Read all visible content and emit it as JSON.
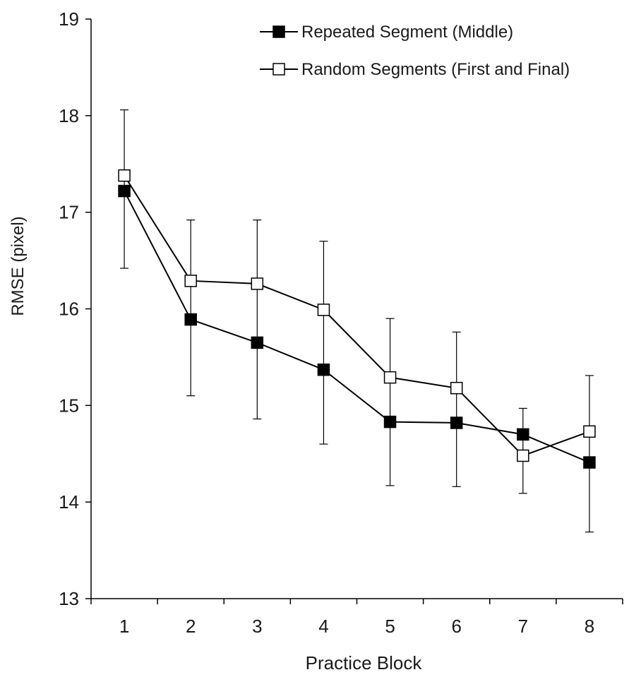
{
  "chart_data": {
    "type": "line",
    "title": "",
    "xlabel": "Practice Block",
    "ylabel": "RMSE (pixel)",
    "categories": [
      "1",
      "2",
      "3",
      "4",
      "5",
      "6",
      "7",
      "8"
    ],
    "ylim": [
      13,
      19
    ],
    "yticks": [
      13,
      14,
      15,
      16,
      17,
      18,
      19
    ],
    "grid": false,
    "legend_position": "top-right",
    "series": [
      {
        "name": "Repeated Segment (Middle)",
        "marker": "filled-square",
        "color": "#000000",
        "values": [
          17.22,
          15.89,
          15.65,
          15.37,
          14.83,
          14.82,
          14.7,
          14.41
        ],
        "error_low": [
          16.42,
          15.1,
          14.86,
          14.6,
          14.17,
          14.16,
          14.09,
          13.69
        ],
        "error_high": [
          18.06,
          16.92,
          16.92,
          16.7,
          15.9,
          15.76,
          14.97,
          15.31
        ]
      },
      {
        "name": "Random Segments (First and Final)",
        "marker": "open-square",
        "color": "#000000",
        "values": [
          17.38,
          16.29,
          16.26,
          15.99,
          15.29,
          15.18,
          14.48,
          14.73
        ]
      }
    ]
  }
}
